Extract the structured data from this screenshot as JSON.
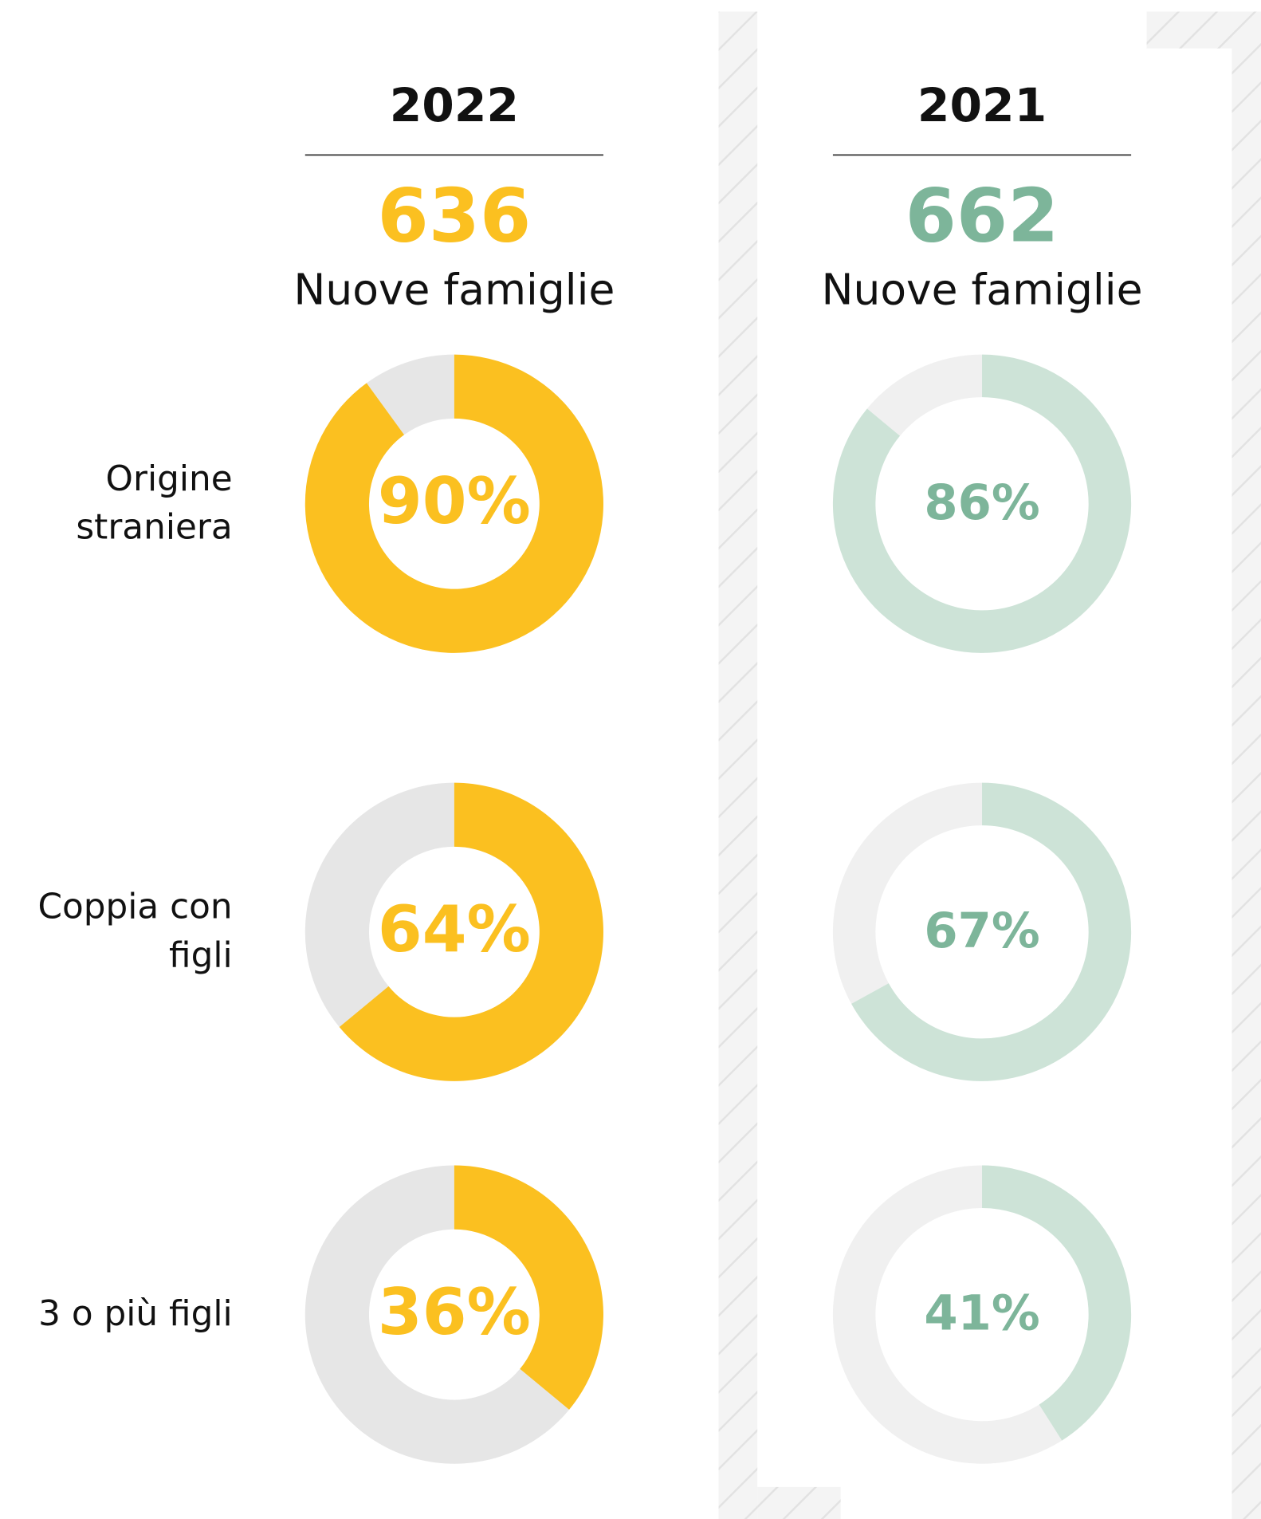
{
  "chart_data": [
    {
      "type": "donut",
      "title": "2022",
      "total": 636,
      "total_label": "Nuove famiglie",
      "categories": [
        "Origine straniera",
        "Coppia con figli",
        "3 o più figli"
      ],
      "values": [
        90,
        64,
        36
      ],
      "value_labels": [
        "90%",
        "64%",
        "36%"
      ],
      "color": "#fbc020",
      "rest_color": "#e6e6e6",
      "text_color": "#fbc020"
    },
    {
      "type": "donut",
      "title": "2021",
      "total": 662,
      "total_label": "Nuove famiglie",
      "categories": [
        "Origine straniera",
        "Coppia con figli",
        "3 o più figli"
      ],
      "values": [
        86,
        67,
        41
      ],
      "value_labels": [
        "86%",
        "67%",
        "41%"
      ],
      "color": "#cde3d7",
      "rest_color": "#f0f0f0",
      "text_color": "#7db59a"
    }
  ]
}
